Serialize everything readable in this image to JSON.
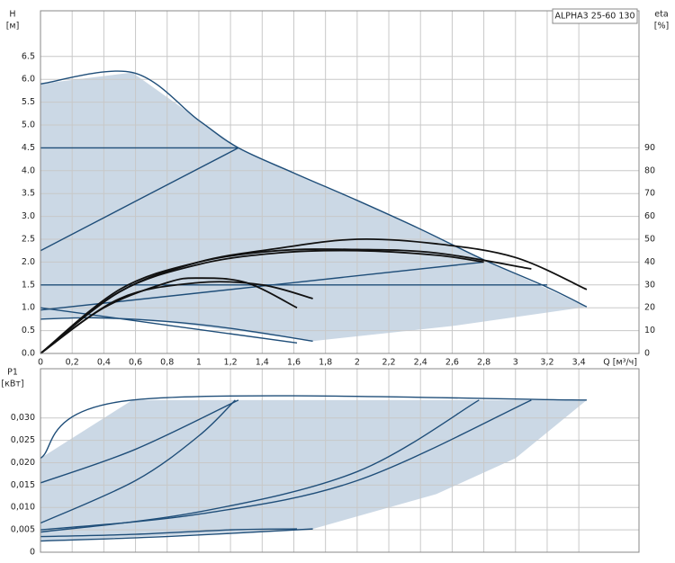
{
  "chart_data": [
    {
      "type": "line",
      "title": "ALPHA3 25-60 130",
      "y_label": "H",
      "y_unit": "[м]",
      "y2_label": "eta",
      "y2_unit": "[%]",
      "x_label": "Q [м³/ч]",
      "xlim": [
        0,
        3.78
      ],
      "ylim": [
        0,
        7.5
      ],
      "y2lim": [
        0,
        150
      ],
      "grid": true,
      "xticks": [
        0,
        {
          "value": 0.2,
          "label": "0,2"
        },
        {
          "value": 0.4,
          "label": "0,4"
        },
        {
          "value": 0.6,
          "label": "0,6"
        },
        {
          "value": 0.8,
          "label": "0,8"
        },
        1,
        {
          "value": 1.2,
          "label": "1,2"
        },
        {
          "value": 1.4,
          "label": "1,4"
        },
        {
          "value": 1.6,
          "label": "1,6"
        },
        {
          "value": 1.8,
          "label": "1,8"
        },
        2,
        {
          "value": 2.2,
          "label": "2,2"
        },
        {
          "value": 2.4,
          "label": "2,4"
        },
        {
          "value": 2.6,
          "label": "2,6"
        },
        {
          "value": 2.8,
          "label": "2,8"
        },
        3,
        {
          "value": 3.2,
          "label": "3,2"
        },
        {
          "value": 3.4,
          "label": "3,4"
        }
      ],
      "yticks": [
        {
          "value": 0,
          "label": "0.0"
        },
        0.5,
        {
          "value": 1,
          "label": "1.0"
        },
        1.5,
        {
          "value": 2,
          "label": "2.0"
        },
        2.5,
        {
          "value": 3,
          "label": "3.0"
        },
        3.5,
        {
          "value": 4,
          "label": "4.0"
        },
        4.5,
        {
          "value": 5,
          "label": "5.0"
        },
        5.5,
        {
          "value": 6,
          "label": "6.0"
        },
        6.5
      ],
      "y2ticks": [
        0,
        10,
        20,
        30,
        40,
        50,
        60,
        70,
        80,
        90
      ],
      "series": [
        {
          "kind": "area",
          "color": "#cbd8e5",
          "x": [
            0,
            0.58,
            1.25,
            2.0,
            2.8,
            3.45,
            2.6,
            1.72,
            1.3,
            0.8,
            0.35,
            0
          ],
          "values": [
            5.9,
            6.15,
            4.5,
            3.35,
            2.05,
            1.02,
            0.6,
            0.27,
            0.47,
            0.68,
            0.78,
            0.75
          ]
        },
        {
          "color": "#1f4e79",
          "x": [
            0,
            0.58,
            1.0,
            1.25,
            1.6,
            2.0,
            2.4,
            2.8,
            3.2,
            3.45
          ],
          "values": [
            5.9,
            6.15,
            5.1,
            4.5,
            3.95,
            3.35,
            2.72,
            2.05,
            1.45,
            1.02
          ]
        },
        {
          "color": "#1f4e79",
          "x": [
            0,
            1.25
          ],
          "values": [
            4.5,
            4.5
          ]
        },
        {
          "color": "#1f4e79",
          "x": [
            0,
            1.25
          ],
          "values": [
            2.25,
            4.5
          ]
        },
        {
          "color": "#1f4e79",
          "x": [
            0,
            3.2
          ],
          "values": [
            1.5,
            1.5
          ]
        },
        {
          "color": "#1f4e79",
          "x": [
            0,
            2.8
          ],
          "values": [
            0.95,
            2.0
          ]
        },
        {
          "color": "#1f4e79",
          "x": [
            0,
            1.62
          ],
          "values": [
            1.0,
            0.23
          ]
        },
        {
          "color": "#1f4e79",
          "x": [
            0,
            0.35,
            0.8,
            1.2,
            1.72
          ],
          "values": [
            0.75,
            0.78,
            0.7,
            0.55,
            0.27
          ]
        },
        {
          "color": "#111111",
          "axis": "y2",
          "x": [
            0,
            0.5,
            1.0,
            1.5,
            2.0,
            2.5,
            3.0,
            3.45
          ],
          "values": [
            0,
            27,
            40,
            46,
            50,
            48,
            42,
            28
          ]
        },
        {
          "color": "#111111",
          "axis": "y2",
          "x": [
            0,
            0.5,
            1.0,
            1.5,
            2.0,
            2.5,
            3.1
          ],
          "values": [
            0,
            28,
            40,
            45,
            45.5,
            44,
            37
          ]
        },
        {
          "color": "#111111",
          "axis": "y2",
          "x": [
            0,
            0.5,
            1.0,
            1.5,
            2.0,
            2.5,
            2.8
          ],
          "values": [
            0,
            27,
            39,
            44,
            45,
            43,
            40
          ]
        },
        {
          "color": "#111111",
          "axis": "y2",
          "x": [
            0,
            0.4,
            0.8,
            1.0,
            1.3,
            1.62
          ],
          "values": [
            0,
            20,
            31,
            33,
            31,
            20
          ]
        },
        {
          "color": "#111111",
          "axis": "y2",
          "x": [
            0,
            0.5,
            1.0,
            1.4,
            1.72
          ],
          "values": [
            0,
            24,
            31,
            30,
            24
          ]
        }
      ]
    },
    {
      "type": "line",
      "y_label": "P1",
      "y_unit": "[кВт]",
      "xlim": [
        0,
        3.78
      ],
      "ylim": [
        0,
        0.041
      ],
      "grid": true,
      "xticks": [
        0,
        0.2,
        0.4,
        0.6,
        0.8,
        1,
        1.2,
        1.4,
        1.6,
        1.8,
        2,
        2.2,
        2.4,
        2.6,
        2.8,
        3,
        3.2,
        3.4
      ],
      "yticks": [
        0,
        {
          "value": 0.005,
          "label": "0,005"
        },
        {
          "value": 0.01,
          "label": "0,010"
        },
        {
          "value": 0.015,
          "label": "0,015"
        },
        {
          "value": 0.02,
          "label": "0,020"
        },
        {
          "value": 0.025,
          "label": "0,025"
        },
        {
          "value": 0.03,
          "label": "0,030"
        }
      ],
      "series": [
        {
          "kind": "area",
          "color": "#cbd8e5",
          "x": [
            0,
            0.58,
            3.45,
            3.0,
            2.5,
            1.72,
            0
          ],
          "values": [
            0.021,
            0.034,
            0.034,
            0.021,
            0.013,
            0.0052,
            0.0025
          ]
        },
        {
          "color": "#1f4e79",
          "x": [
            0,
            0.58,
            3.45
          ],
          "values": [
            0.021,
            0.034,
            0.034
          ]
        },
        {
          "color": "#1f4e79",
          "x": [
            0,
            0.6,
            1.25
          ],
          "values": [
            0.0155,
            0.023,
            0.034
          ]
        },
        {
          "color": "#1f4e79",
          "x": [
            0,
            0.6,
            1.0,
            1.23
          ],
          "values": [
            0.0065,
            0.016,
            0.026,
            0.034
          ]
        },
        {
          "color": "#1f4e79",
          "x": [
            0,
            1.0,
            2.0,
            2.77
          ],
          "values": [
            0.0045,
            0.009,
            0.018,
            0.034
          ]
        },
        {
          "color": "#1f4e79",
          "x": [
            0,
            1.0,
            2.0,
            3.1
          ],
          "values": [
            0.005,
            0.0085,
            0.016,
            0.034
          ]
        },
        {
          "color": "#1f4e79",
          "x": [
            0,
            0.6,
            1.2,
            1.62
          ],
          "values": [
            0.0035,
            0.004,
            0.005,
            0.0052
          ]
        },
        {
          "color": "#1f4e79",
          "x": [
            0,
            0.8,
            1.72
          ],
          "values": [
            0.0025,
            0.0035,
            0.0052
          ]
        }
      ]
    }
  ]
}
